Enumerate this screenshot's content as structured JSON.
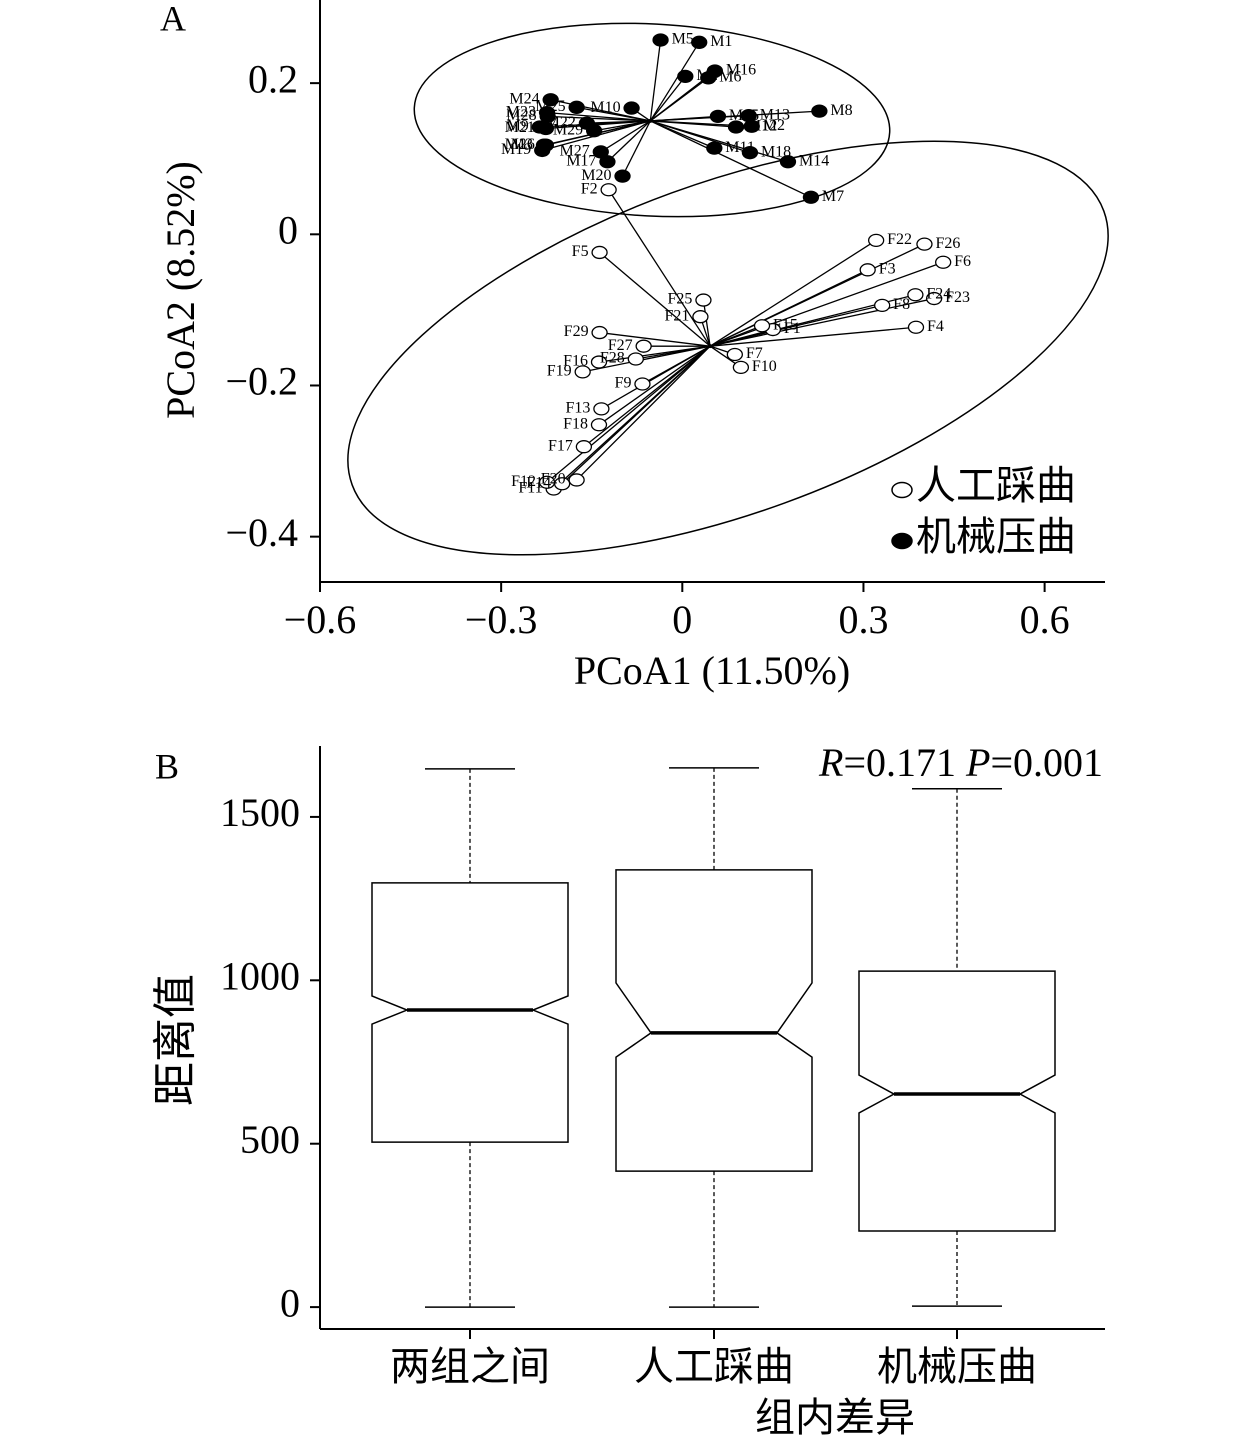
{
  "chart_data": [
    {
      "type": "scatter",
      "panel": "A",
      "x_label": "PCoA1 (11.50%)",
      "y_label": "PCoA2 (8.52%)",
      "xlim": [
        -0.6,
        0.7
      ],
      "ylim": [
        -0.46,
        0.31
      ],
      "xticks": [
        {
          "value": -0.6,
          "label": "−0.6"
        },
        {
          "value": -0.3,
          "label": "−0.3"
        },
        0,
        0.3,
        0.6
      ],
      "yticks": [
        0.2,
        0,
        {
          "value": -0.2,
          "label": "−0.2"
        },
        {
          "value": -0.4,
          "label": "−0.4"
        }
      ],
      "legend": "lower right",
      "series": [
        {
          "name": "人工踩曲",
          "color": "#ffffff",
          "centroid": {
            "x": 0.046,
            "y": -0.148
          },
          "labels": [
            "F1",
            "F2",
            "F3",
            "F4",
            "F5",
            "F6",
            "F7",
            "F8",
            "F9",
            "F10",
            "F11",
            "F12",
            "F13",
            "F14",
            "F15",
            "F16",
            "F17",
            "F18",
            "F19",
            "F20",
            "F21",
            "F22",
            "F23",
            "F24",
            "F25",
            "F26",
            "F27",
            "F28",
            "F29"
          ],
          "x": [
            0.15,
            -0.122,
            0.307,
            0.387,
            -0.137,
            0.432,
            0.087,
            0.331,
            -0.066,
            0.097,
            -0.213,
            -0.224,
            -0.134,
            -0.199,
            0.132,
            -0.138,
            -0.163,
            -0.138,
            -0.165,
            -0.175,
            0.03,
            0.321,
            0.417,
            0.386,
            0.035,
            0.401,
            -0.064,
            -0.077,
            -0.137
          ],
          "y": [
            -0.126,
            0.059,
            -0.047,
            -0.123,
            -0.024,
            -0.037,
            -0.159,
            -0.094,
            -0.198,
            -0.176,
            -0.337,
            -0.328,
            -0.231,
            -0.33,
            -0.121,
            -0.169,
            -0.281,
            -0.252,
            -0.182,
            -0.325,
            -0.109,
            -0.008,
            -0.085,
            -0.08,
            -0.087,
            -0.013,
            -0.148,
            -0.165,
            -0.13
          ]
        },
        {
          "name": "机械压曲",
          "color": "#000000",
          "centroid": {
            "x": -0.053,
            "y": 0.15
          },
          "labels": [
            "M1",
            "M2",
            "M3",
            "M4",
            "M5",
            "M6",
            "M7",
            "M8",
            "M9",
            "M10",
            "M11",
            "M12",
            "M13",
            "M14",
            "M15",
            "M16",
            "M17",
            "M18",
            "M19",
            "M20",
            "M21",
            "M22",
            "M23",
            "M24",
            "M25",
            "M26",
            "M27",
            "M28",
            "M29"
          ],
          "x": [
            0.028,
            0.115,
            -0.229,
            0.005,
            -0.036,
            0.043,
            0.213,
            0.227,
            -0.236,
            -0.084,
            0.053,
            0.089,
            0.11,
            0.175,
            0.059,
            0.054,
            -0.124,
            0.112,
            -0.232,
            -0.099,
            -0.226,
            -0.158,
            -0.224,
            -0.218,
            -0.175,
            -0.226,
            -0.135,
            -0.223,
            -0.146
          ],
          "y": [
            0.254,
            0.143,
            0.118,
            0.209,
            0.257,
            0.207,
            0.049,
            0.163,
            0.142,
            0.167,
            0.114,
            0.142,
            0.157,
            0.096,
            0.156,
            0.216,
            0.096,
            0.108,
            0.111,
            0.077,
            0.14,
            0.147,
            0.161,
            0.178,
            0.168,
            0.118,
            0.109,
            0.156,
            0.137
          ]
        }
      ]
    },
    {
      "type": "box",
      "panel": "B",
      "y_label": "距离值",
      "categories": [
        "两组之间",
        "人工踩曲",
        "机械压曲"
      ],
      "group_label": "组内差异",
      "annotation": [
        "R",
        "=0.171 ",
        "P",
        "=0.001"
      ],
      "ylim": [
        -67,
        1717
      ],
      "yticks": [
        0,
        500,
        1000,
        1500
      ],
      "whisker_high": [
        1647,
        1650,
        1586
      ],
      "q3": [
        1298,
        1338,
        1028
      ],
      "notch_high": [
        952,
        992,
        710
      ],
      "median": [
        909,
        839,
        652
      ],
      "notch_low": [
        866,
        765,
        594
      ],
      "q1": [
        505,
        416,
        233
      ],
      "whisker_low": [
        0,
        0,
        3
      ]
    }
  ]
}
